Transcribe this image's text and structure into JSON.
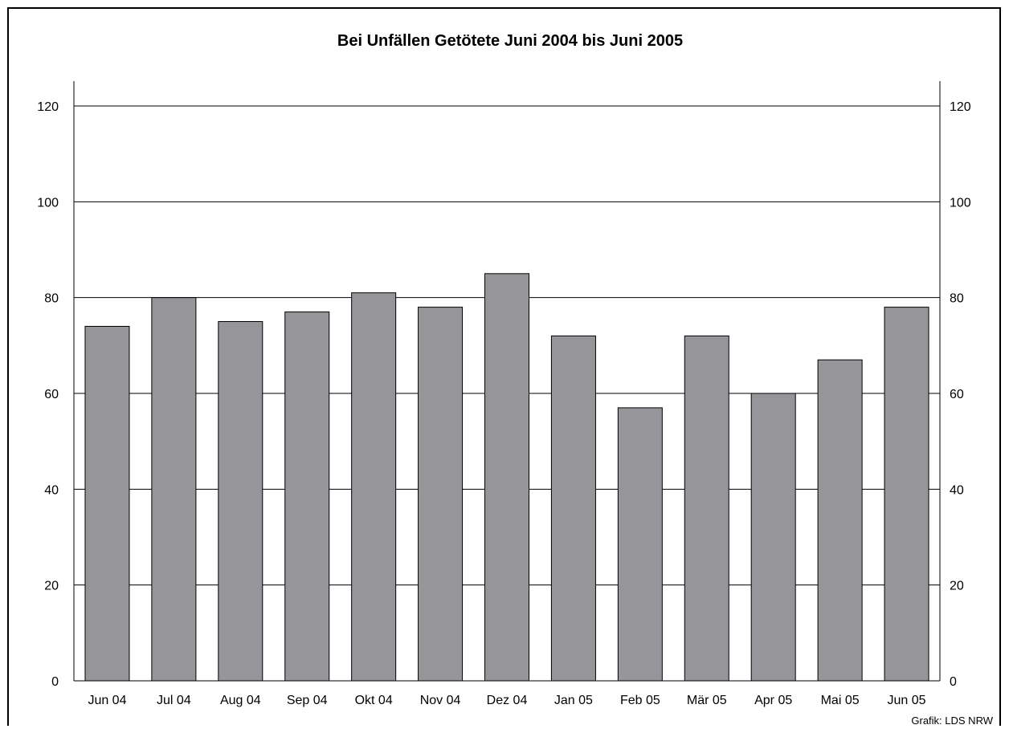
{
  "chart_data": {
    "type": "bar",
    "title": "Bei Unfällen Getötete Juni 2004 bis Juni 2005",
    "categories": [
      "Jun 04",
      "Jul 04",
      "Aug 04",
      "Sep 04",
      "Okt 04",
      "Nov 04",
      "Dez 04",
      "Jan 05",
      "Feb 05",
      "Mär 05",
      "Apr 05",
      "Mai 05",
      "Jun 05"
    ],
    "values": [
      74,
      80,
      75,
      77,
      81,
      78,
      85,
      72,
      57,
      72,
      60,
      67,
      78
    ],
    "xlabel": "",
    "ylabel": "",
    "ylim": [
      0,
      120
    ],
    "yticks": [
      0,
      20,
      40,
      60,
      80,
      100,
      120
    ],
    "grid": true,
    "secondary_y_axis": true,
    "bar_color": "#95959a",
    "source": "Grafik: LDS NRW"
  }
}
